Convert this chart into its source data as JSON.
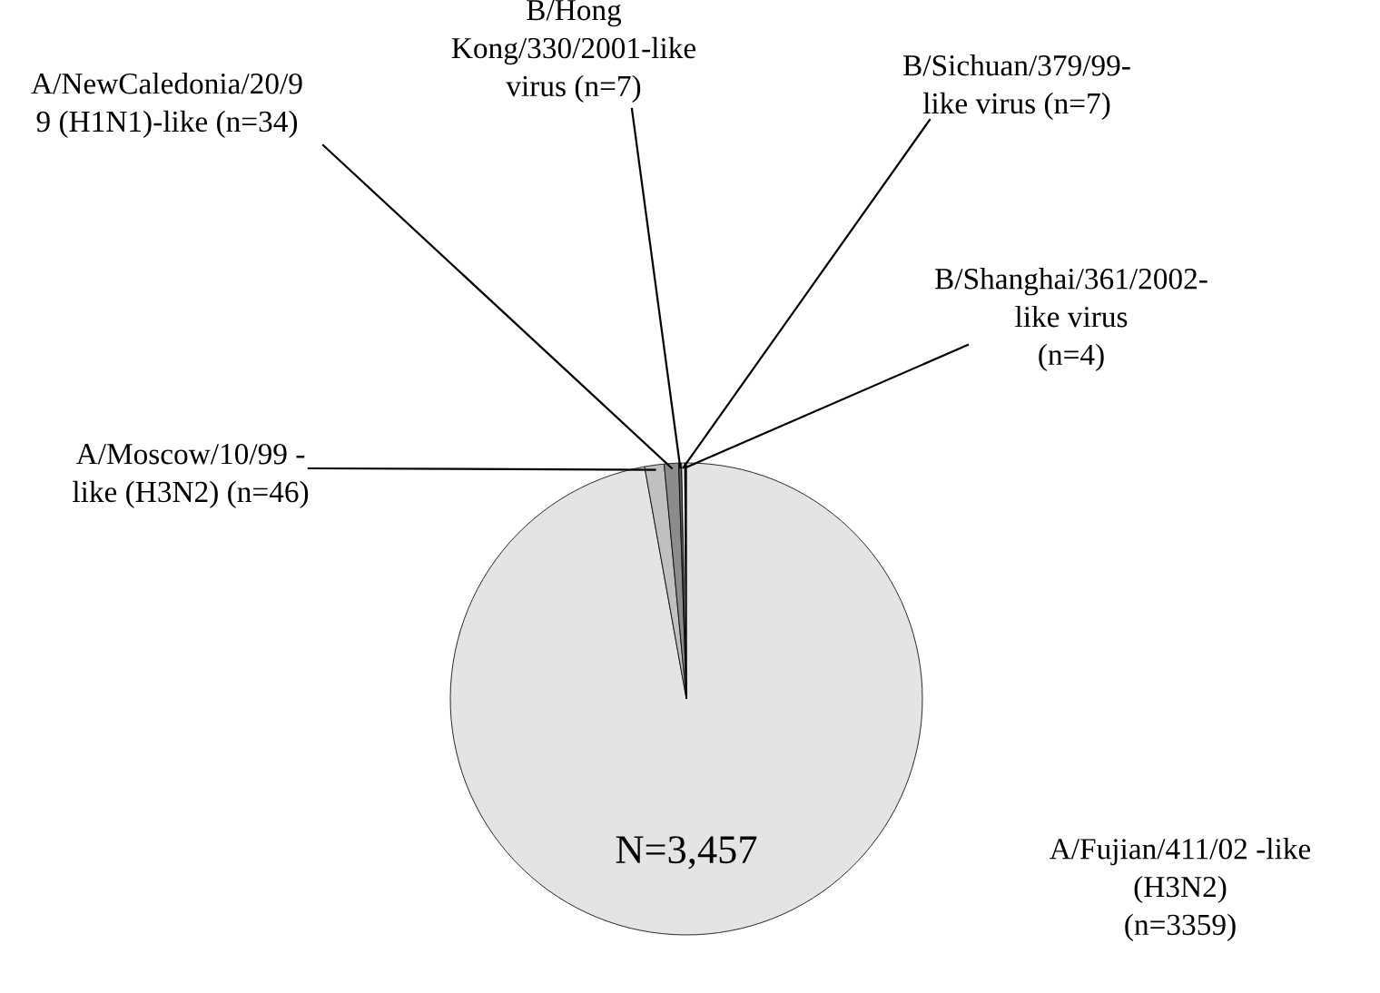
{
  "chart_data": {
    "type": "pie",
    "categories": [
      "A/Fujian/411/02 -like\n(H3N2)\n(n=3359)",
      "A/Moscow/10/99 -\nlike (H3N2) (n=46)",
      "A/NewCaledonia/20/9\n9 (H1N1)-like (n=34)",
      "B/Hong\nKong/330/2001-like\nvirus (n=7)",
      "B/Sichuan/379/99-\nlike virus (n=7)",
      "B/Shanghai/361/2002-\nlike virus\n(n=4)"
    ],
    "values": [
      3359,
      46,
      34,
      7,
      7,
      4
    ],
    "colors": [
      "#e4e4e4",
      "#c0c0c0",
      "#8c8c8c",
      "#595959",
      "#ffffff",
      "#000000"
    ],
    "annotations": [
      "N=3,457"
    ]
  }
}
